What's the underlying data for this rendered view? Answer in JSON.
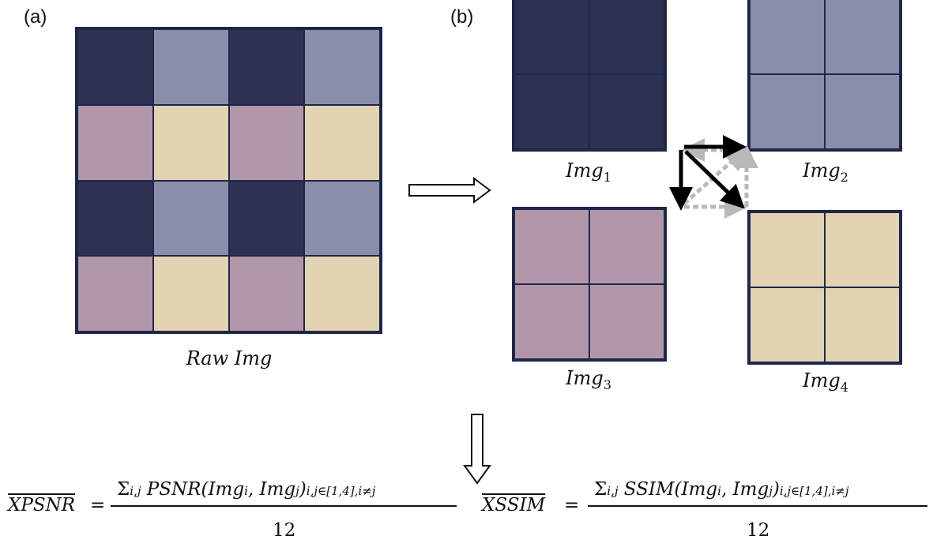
{
  "panels": {
    "a": "(a)",
    "b": "(b)"
  },
  "colors": {
    "navy": "#2d3252",
    "slate": "#8a8eab",
    "mauve": "#b297a9",
    "beige": "#e2d3b3",
    "border": "#1f2748"
  },
  "raw_grid": [
    [
      "navy",
      "slate",
      "navy",
      "slate"
    ],
    [
      "mauve",
      "beige",
      "mauve",
      "beige"
    ],
    [
      "navy",
      "slate",
      "navy",
      "slate"
    ],
    [
      "mauve",
      "beige",
      "mauve",
      "beige"
    ]
  ],
  "captions": {
    "raw": "Raw Img",
    "img_base": "Img",
    "img1_sub": "1",
    "img2_sub": "2",
    "img3_sub": "3",
    "img4_sub": "4"
  },
  "formulas": {
    "psnr_lhs": "XPSNR",
    "ssim_lhs": "XSSIM",
    "eq": "=",
    "sigma": "Σ",
    "sigma_sub": "i,j",
    "psnr_func": "PSNR",
    "ssim_func": "SSIM",
    "args": "(Img",
    "arg_i": "i",
    "comma": ", Img",
    "arg_j": "j",
    "close": ")",
    "range_sub": "i,j∈[1,4],i≠j",
    "denominator": "12"
  }
}
